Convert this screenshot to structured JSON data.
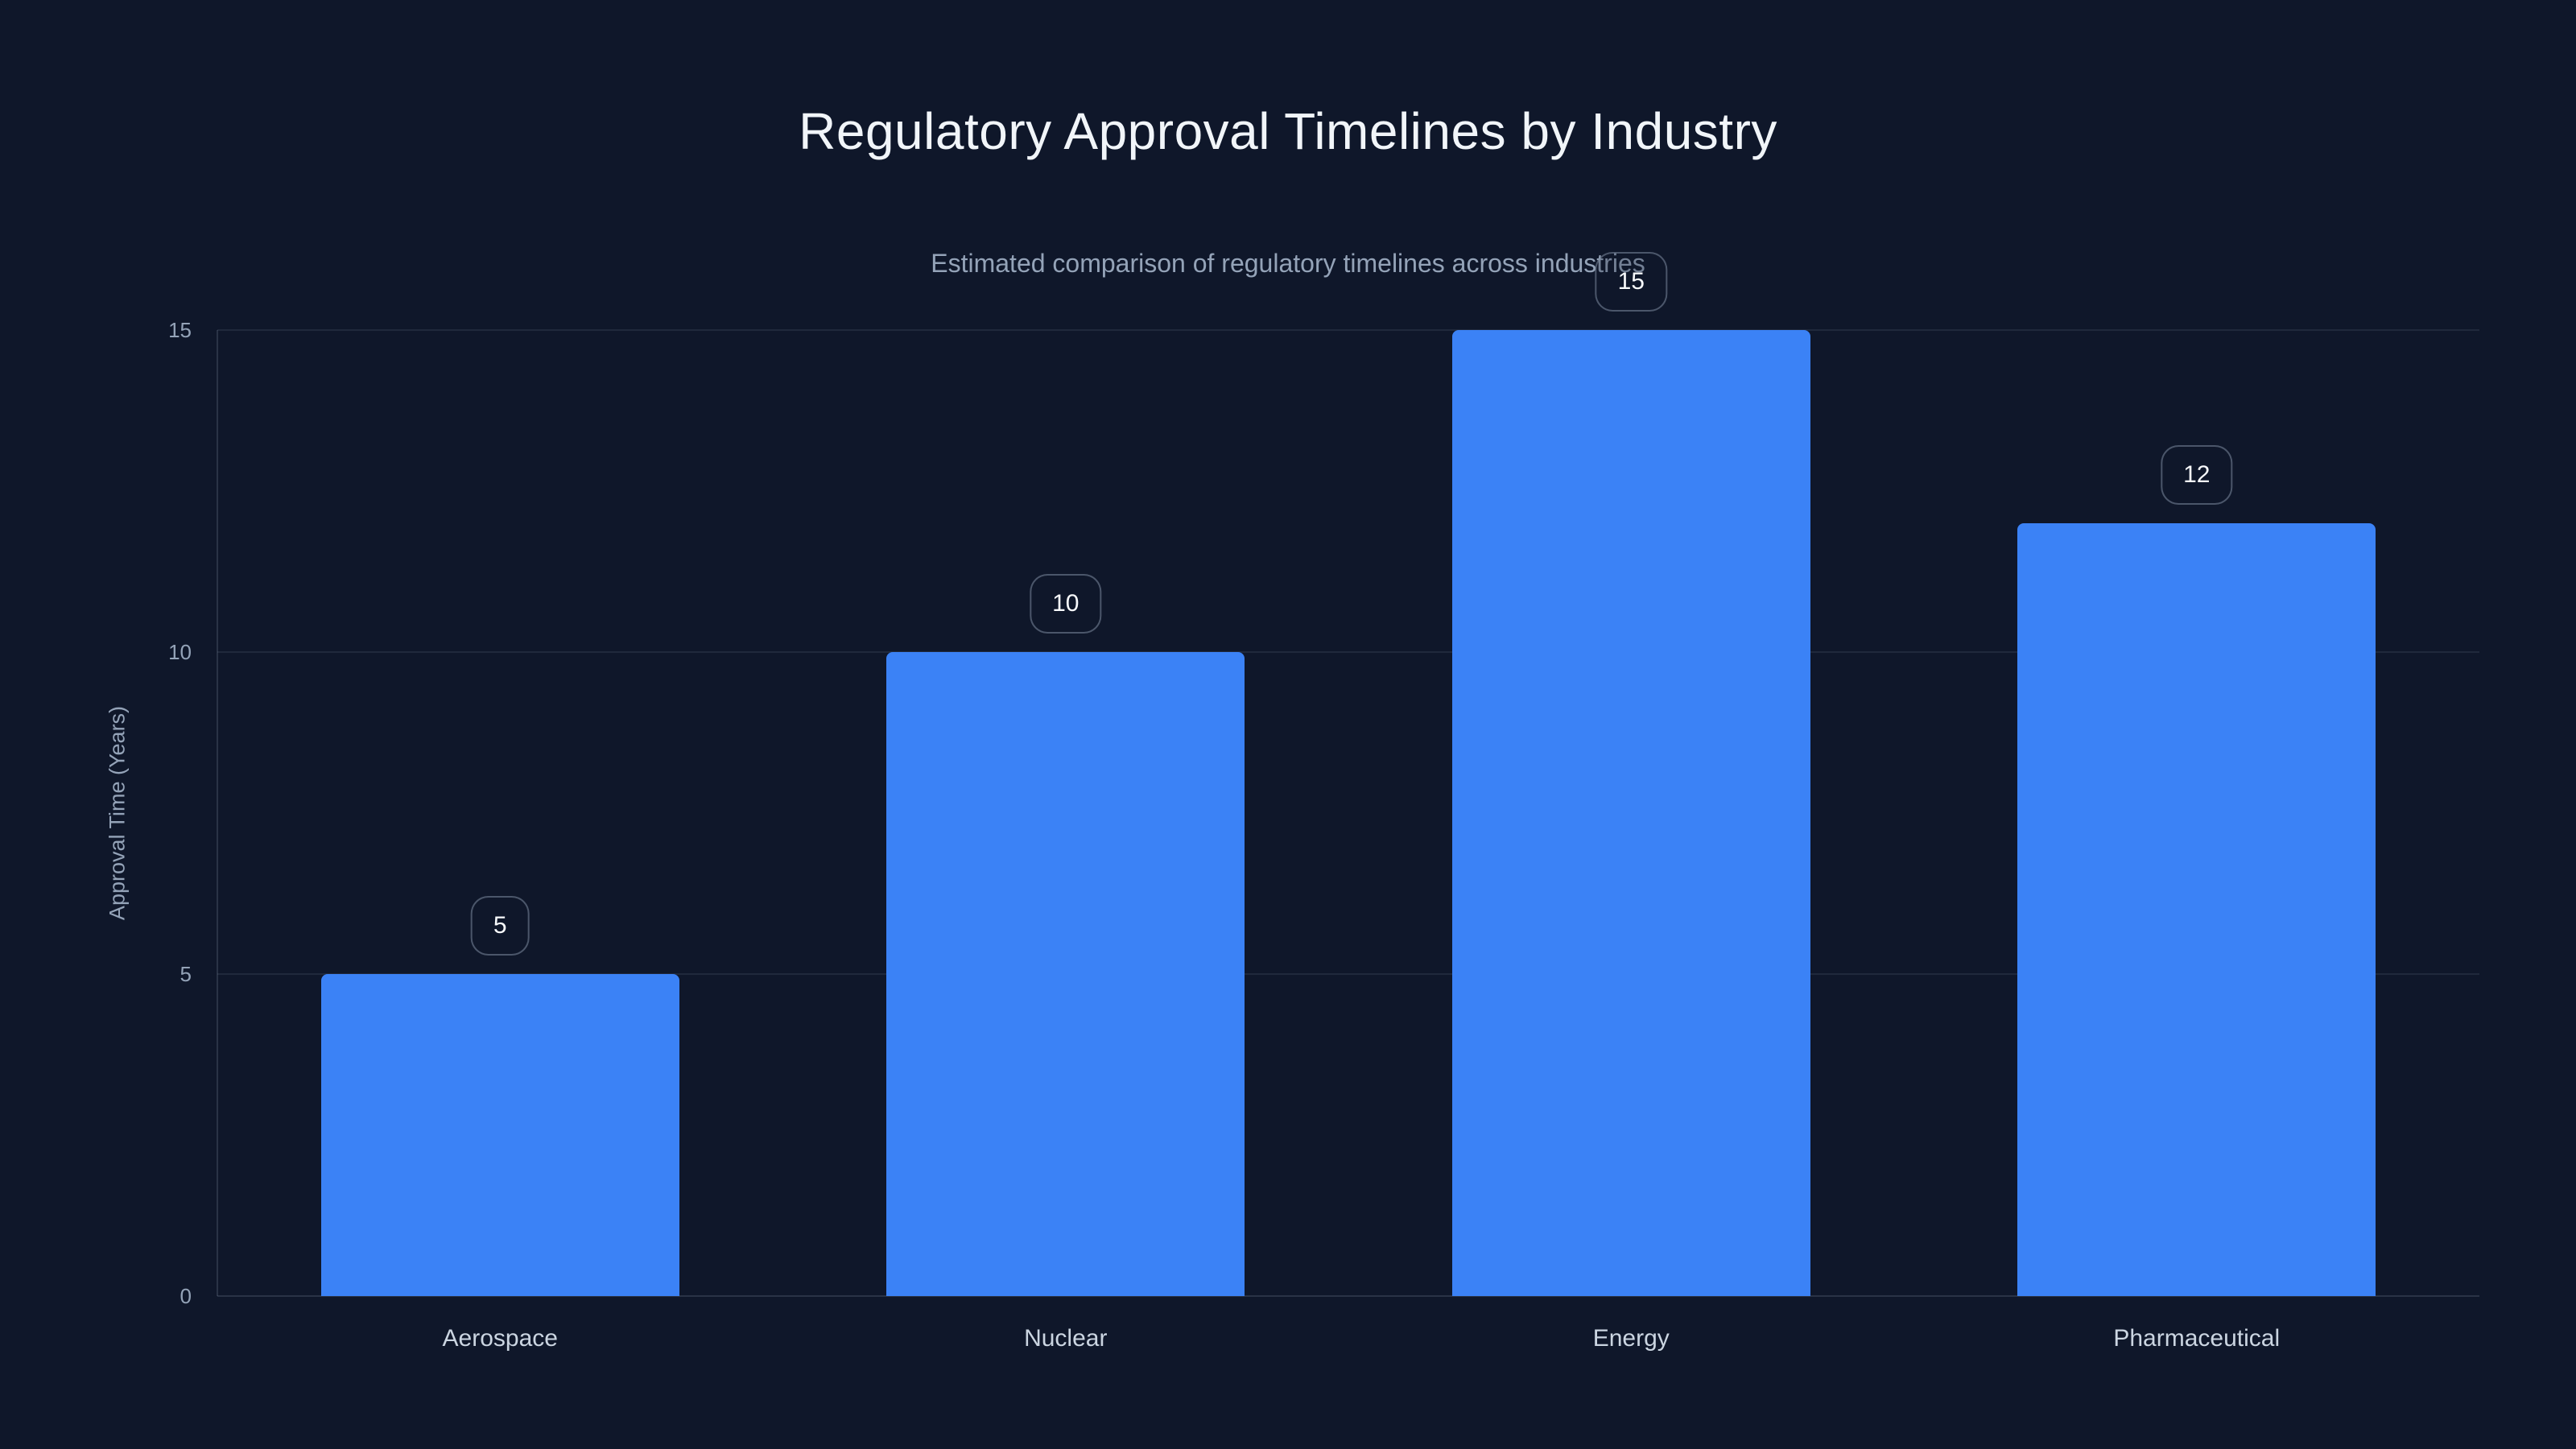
{
  "page": {
    "title": "Regulatory Approval Timelines by Industry",
    "subtitle": "Estimated comparison of regulatory timelines across industries"
  },
  "chart_data": {
    "type": "bar",
    "title": "Regulatory Approval Timelines by Industry",
    "subtitle": "Estimated comparison of regulatory timelines across industries",
    "categories": [
      "Aerospace",
      "Nuclear",
      "Energy",
      "Pharmaceutical"
    ],
    "values": [
      5,
      10,
      15,
      12
    ],
    "data_labels": [
      "5",
      "10",
      "15",
      "12"
    ],
    "xlabel": "",
    "ylabel": "Approval Time (Years)",
    "ylim": [
      0,
      15
    ],
    "yticks": [
      0,
      5,
      10,
      15
    ],
    "grid": true,
    "legend_position": "none",
    "bar_color": "#3b82f6",
    "background_color": "#0f172a"
  },
  "colors": {
    "background": "#0f172a",
    "bar": "#3b82f6",
    "title_text": "#f1f5f9",
    "subtitle_text": "#94a3b8",
    "axis_text": "#94a3b8",
    "category_text": "#cbd5e1",
    "gridline": "rgba(148,163,184,0.13)",
    "badge_border": "rgba(148,163,184,0.45)",
    "badge_text": "#f8fafc"
  }
}
